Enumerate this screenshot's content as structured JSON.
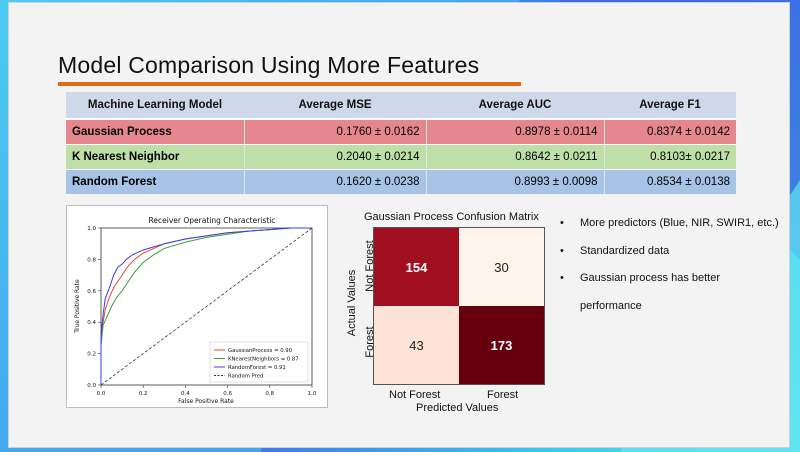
{
  "title": "Model Comparison Using More Features",
  "table": {
    "headers": [
      "Machine Learning Model",
      "Average MSE",
      "Average AUC",
      "Average F1"
    ],
    "rows": [
      {
        "model": "Gaussian Process",
        "mse": "0.1760 ± 0.0162",
        "auc": "0.8978 ± 0.0114",
        "f1": "0.8374 ± 0.0142"
      },
      {
        "model": "K Nearest Neighbor",
        "mse": "0.2040 ± 0.0214",
        "auc": "0.8642 ± 0.0211",
        "f1": "0.8103± 0.0217"
      },
      {
        "model": "Random Forest",
        "mse": "0.1620 ± 0.0238",
        "auc": "0.8993 ± 0.0098",
        "f1": "0.8534 ± 0.0138"
      }
    ]
  },
  "roc": {
    "title": "Receiver Operating Characteristic",
    "xlabel": "False Positive Rate",
    "ylabel": "True Positive Rate",
    "ticks": [
      "0.0",
      "0.2",
      "0.4",
      "0.6",
      "0.8",
      "1.0"
    ],
    "legend": [
      {
        "label": "GaussianProcess = 0.90",
        "color": "#e8483c"
      },
      {
        "label": "KNearestNeighbors = 0.87",
        "color": "#3aa13a"
      },
      {
        "label": "RandomForest = 0.91",
        "color": "#3b3fe8"
      },
      {
        "label": "Random Pred",
        "color": "#333333"
      }
    ]
  },
  "confusion": {
    "title": "Gaussian Process Confusion Matrix",
    "cells": [
      "154",
      "30",
      "43",
      "173"
    ],
    "row_labels": [
      "Not Forest",
      "Forest"
    ],
    "col_labels": [
      "Not Forest",
      "Forest"
    ],
    "ylabel": "Actual Values",
    "xlabel": "Predicted Values"
  },
  "bullets": [
    "More predictors (Blue, NIR, SWIR1, etc.)",
    "Standardized data",
    "Gaussian process has better",
    "performance"
  ],
  "chart_data": {
    "type": "line",
    "title": "Receiver Operating Characteristic",
    "xlabel": "False Positive Rate",
    "ylabel": "True Positive Rate",
    "xlim": [
      0,
      1
    ],
    "ylim": [
      0,
      1
    ],
    "legend_position": "bottom-right",
    "series": [
      {
        "name": "GaussianProcess = 0.90",
        "color": "#e8483c",
        "x": [
          0,
          0,
          0.01,
          0.02,
          0.04,
          0.06,
          0.08,
          0.1,
          0.13,
          0.16,
          0.2,
          0.25,
          0.3,
          0.4,
          0.5,
          0.6,
          0.7,
          0.8,
          0.9,
          1.0
        ],
        "y": [
          0,
          0.3,
          0.4,
          0.48,
          0.56,
          0.62,
          0.66,
          0.7,
          0.76,
          0.8,
          0.84,
          0.87,
          0.9,
          0.93,
          0.95,
          0.97,
          0.98,
          0.99,
          1.0,
          1.0
        ]
      },
      {
        "name": "KNearestNeighbors = 0.87",
        "color": "#3aa13a",
        "x": [
          0,
          0,
          0.01,
          0.03,
          0.05,
          0.07,
          0.1,
          0.13,
          0.16,
          0.2,
          0.25,
          0.3,
          0.4,
          0.5,
          0.6,
          0.7,
          0.8,
          0.9,
          1.0
        ],
        "y": [
          0,
          0.25,
          0.38,
          0.44,
          0.5,
          0.55,
          0.6,
          0.66,
          0.72,
          0.78,
          0.83,
          0.87,
          0.91,
          0.94,
          0.96,
          0.98,
          0.99,
          1.0,
          1.0
        ]
      },
      {
        "name": "RandomForest = 0.91",
        "color": "#3b3fe8",
        "x": [
          0,
          0,
          0.01,
          0.02,
          0.04,
          0.06,
          0.08,
          0.1,
          0.12,
          0.15,
          0.2,
          0.25,
          0.3,
          0.4,
          0.5,
          0.6,
          0.7,
          0.8,
          0.9,
          1.0
        ],
        "y": [
          0,
          0.32,
          0.45,
          0.55,
          0.62,
          0.7,
          0.75,
          0.77,
          0.8,
          0.83,
          0.86,
          0.88,
          0.9,
          0.93,
          0.95,
          0.97,
          0.98,
          0.99,
          1.0,
          1.0
        ]
      },
      {
        "name": "Random Pred",
        "color": "#333333",
        "dashed": true,
        "x": [
          0,
          1
        ],
        "y": [
          0,
          1
        ]
      }
    ]
  }
}
